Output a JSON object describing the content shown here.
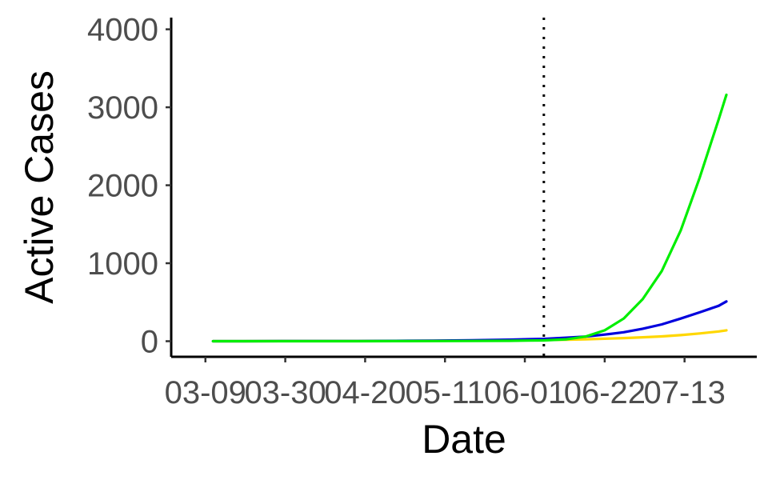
{
  "chart_data": {
    "type": "line",
    "title": "",
    "xlabel": "Date",
    "ylabel": "Active Cases",
    "x_axis": {
      "tick_labels": [
        "03-09",
        "03-30",
        "04-20",
        "05-11",
        "06-01",
        "06-22",
        "07-13"
      ],
      "tick_day_offsets": [
        0,
        21,
        42,
        63,
        84,
        105,
        126
      ],
      "range_days": [
        -9,
        145
      ]
    },
    "y_axis": {
      "ticks": [
        0,
        1000,
        2000,
        3000,
        4000
      ],
      "ylim": [
        -200,
        4150
      ]
    },
    "vline": {
      "day": 89,
      "style": "dotted",
      "color": "#000000"
    },
    "grid": false,
    "legend": "none",
    "x": [
      2,
      10,
      20,
      30,
      40,
      50,
      60,
      70,
      80,
      85,
      89,
      95,
      100,
      105,
      110,
      115,
      120,
      125,
      130,
      135,
      137
    ],
    "series": [
      {
        "color": "#FFD700",
        "values": [
          0,
          0,
          1,
          1,
          2,
          3,
          5,
          8,
          12,
          14,
          15,
          20,
          25,
          32,
          40,
          50,
          62,
          78,
          100,
          125,
          140
        ]
      },
      {
        "color": "#0000DD",
        "values": [
          0,
          0,
          1,
          1,
          2,
          4,
          7,
          12,
          20,
          26,
          30,
          45,
          60,
          85,
          115,
          160,
          215,
          290,
          370,
          455,
          510
        ]
      },
      {
        "color": "#00EE00",
        "values": [
          0,
          0,
          0,
          0,
          0,
          1,
          2,
          3,
          5,
          8,
          10,
          25,
          60,
          140,
          290,
          540,
          900,
          1420,
          2100,
          2850,
          3160
        ]
      }
    ]
  }
}
